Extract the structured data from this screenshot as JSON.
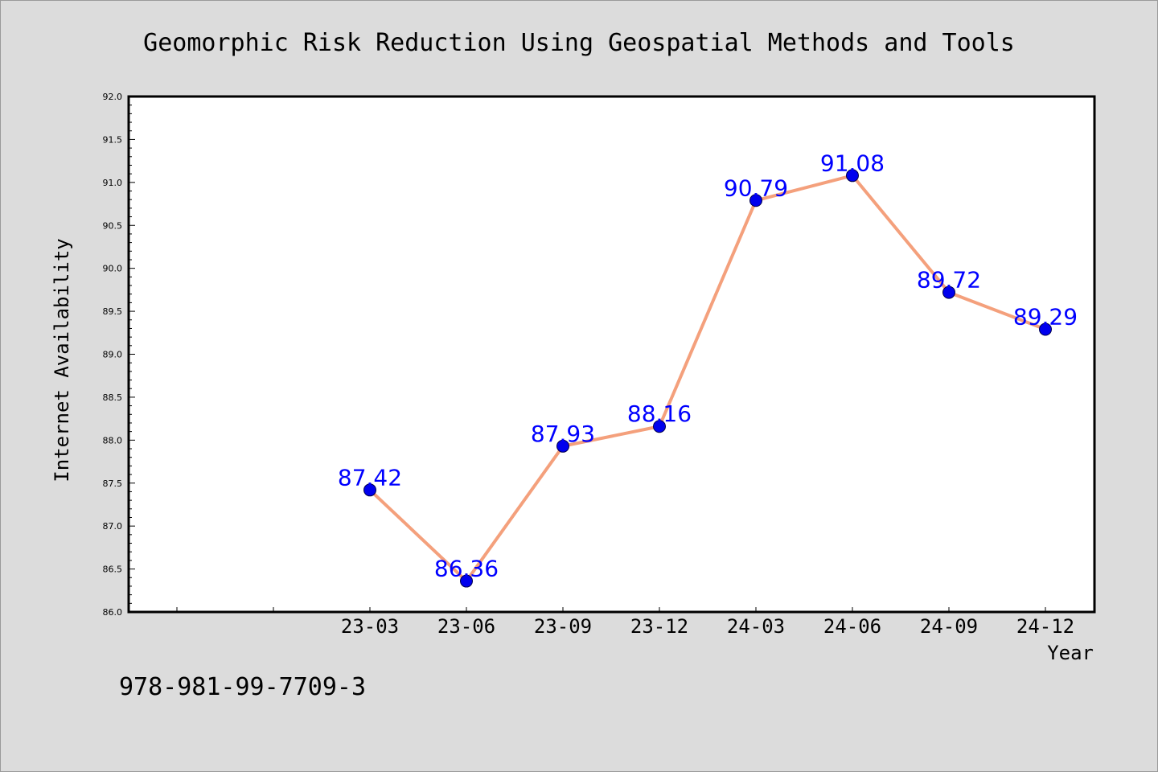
{
  "chart_data": {
    "type": "line",
    "title": "Geomorphic Risk Reduction Using Geospatial Methods and Tools",
    "xlabel": "Year",
    "ylabel": "Internet Availability",
    "categories": [
      "23-03",
      "23-06",
      "23-09",
      "23-12",
      "24-03",
      "24-06",
      "24-09",
      "24-12"
    ],
    "series": [
      {
        "values": [
          87.42,
          86.36,
          87.93,
          88.16,
          90.79,
          91.08,
          89.72,
          89.29
        ]
      }
    ],
    "data_labels": [
      "87.42",
      "86.36",
      "87.93",
      "88.16",
      "90.79",
      "91.08",
      "89.72",
      "89.29"
    ],
    "ylim": [
      86.0,
      92.0
    ],
    "yticks": [
      "86.0",
      "86.5",
      "87.0",
      "87.5",
      "88.0",
      "88.5",
      "89.0",
      "89.5",
      "90.0",
      "90.5",
      "91.0",
      "91.5",
      "92.0"
    ],
    "grid": false,
    "legend": "none",
    "colors": {
      "line": "#f4a07c",
      "marker": "#0000ee",
      "label": "#0000ff",
      "background": "#dcdcdc",
      "plot_background": "#ffffff"
    }
  },
  "footer": {
    "isbn": "978-981-99-7709-3"
  }
}
